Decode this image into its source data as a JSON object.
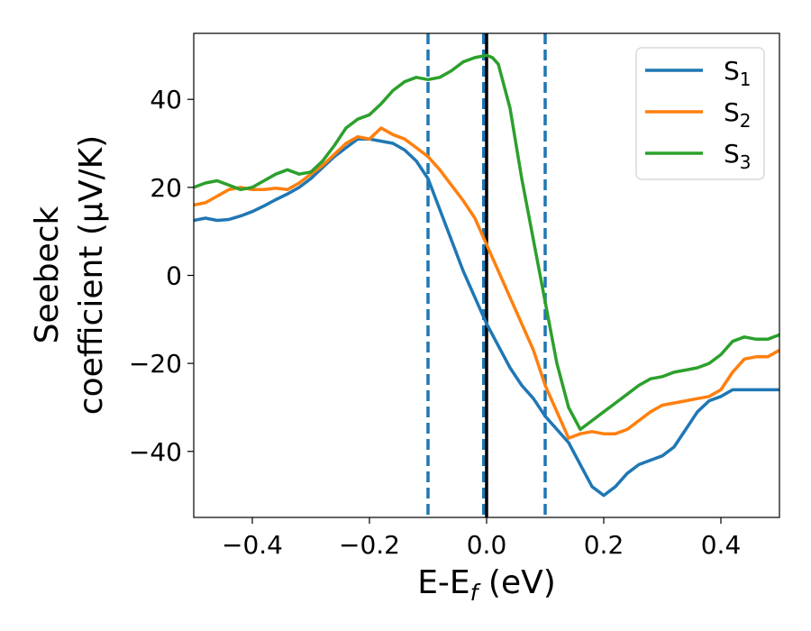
{
  "chart_data": {
    "type": "line",
    "title": "",
    "xlabel": {
      "main": "E-E",
      "sub": "f",
      "suffix": " (eV)"
    },
    "ylabel": {
      "line1": "Seebeck",
      "line2": "coefficient  (μV/K)"
    },
    "xlim": [
      -0.5,
      0.5
    ],
    "ylim": [
      -55,
      55
    ],
    "xticks": [
      -0.4,
      -0.2,
      0.0,
      0.2,
      0.4
    ],
    "xtick_labels": [
      "−0.4",
      "−0.2",
      "0.0",
      "0.2",
      "0.4"
    ],
    "yticks": [
      -40,
      -20,
      0,
      20,
      40
    ],
    "ytick_labels": [
      "−40",
      "−20",
      "0",
      "20",
      "40"
    ],
    "grid": false,
    "legend": {
      "position": "top-right"
    },
    "series": [
      {
        "name": "S",
        "sub": "1",
        "color": "#1f77b4",
        "x": [
          -0.5,
          -0.48,
          -0.46,
          -0.44,
          -0.42,
          -0.4,
          -0.38,
          -0.36,
          -0.34,
          -0.32,
          -0.3,
          -0.28,
          -0.26,
          -0.24,
          -0.22,
          -0.2,
          -0.18,
          -0.16,
          -0.14,
          -0.12,
          -0.1,
          -0.08,
          -0.06,
          -0.04,
          -0.02,
          0.0,
          0.02,
          0.04,
          0.06,
          0.08,
          0.1,
          0.12,
          0.14,
          0.16,
          0.18,
          0.2,
          0.22,
          0.24,
          0.26,
          0.28,
          0.3,
          0.32,
          0.34,
          0.36,
          0.38,
          0.4,
          0.42,
          0.44,
          0.46,
          0.48,
          0.5
        ],
        "y": [
          12.5,
          13,
          12.5,
          12.7,
          13.5,
          14.5,
          15.8,
          17.2,
          18.5,
          20,
          22,
          24.5,
          27,
          29,
          31,
          31,
          30.5,
          30,
          28.5,
          26,
          22,
          15,
          8,
          1,
          -5,
          -11,
          -16,
          -21,
          -25,
          -28,
          -32,
          -35,
          -38,
          -43,
          -48,
          -50,
          -48,
          -45,
          -43,
          -42,
          -41,
          -39,
          -35,
          -31,
          -28.5,
          -27.5,
          -26,
          -26,
          -26,
          -26,
          -26
        ]
      },
      {
        "name": "S",
        "sub": "2",
        "color": "#ff7f0e",
        "x": [
          -0.5,
          -0.48,
          -0.46,
          -0.44,
          -0.42,
          -0.4,
          -0.38,
          -0.36,
          -0.34,
          -0.32,
          -0.3,
          -0.28,
          -0.26,
          -0.24,
          -0.22,
          -0.2,
          -0.18,
          -0.16,
          -0.14,
          -0.12,
          -0.1,
          -0.08,
          -0.06,
          -0.04,
          -0.02,
          0.0,
          0.02,
          0.04,
          0.06,
          0.08,
          0.1,
          0.12,
          0.14,
          0.16,
          0.18,
          0.2,
          0.22,
          0.24,
          0.26,
          0.28,
          0.3,
          0.32,
          0.34,
          0.36,
          0.38,
          0.4,
          0.42,
          0.44,
          0.46,
          0.48,
          0.5
        ],
        "y": [
          16,
          16.5,
          18,
          19.5,
          20,
          19.5,
          19.5,
          19.8,
          19.5,
          21,
          23,
          25,
          27.5,
          30,
          31.5,
          31,
          33.5,
          32,
          31,
          29,
          27,
          24,
          20.5,
          17,
          13,
          7,
          1,
          -5,
          -11,
          -17,
          -25,
          -31,
          -37,
          -36,
          -35.5,
          -36,
          -36,
          -35,
          -33,
          -31,
          -29.5,
          -29,
          -28.5,
          -28,
          -27.5,
          -26,
          -22,
          -19,
          -18.5,
          -18.5,
          -17
        ]
      },
      {
        "name": "S",
        "sub": "3",
        "color": "#2ca02c",
        "x": [
          -0.5,
          -0.48,
          -0.46,
          -0.44,
          -0.42,
          -0.4,
          -0.38,
          -0.36,
          -0.34,
          -0.32,
          -0.3,
          -0.28,
          -0.26,
          -0.24,
          -0.22,
          -0.2,
          -0.18,
          -0.16,
          -0.14,
          -0.12,
          -0.1,
          -0.08,
          -0.06,
          -0.04,
          -0.02,
          0.0,
          0.01,
          0.02,
          0.04,
          0.06,
          0.08,
          0.1,
          0.12,
          0.14,
          0.16,
          0.18,
          0.2,
          0.22,
          0.24,
          0.26,
          0.28,
          0.3,
          0.32,
          0.34,
          0.36,
          0.38,
          0.4,
          0.42,
          0.44,
          0.46,
          0.48,
          0.5
        ],
        "y": [
          20,
          21,
          21.5,
          20.5,
          19.5,
          20,
          21.5,
          23,
          24,
          23,
          23.5,
          26,
          29.5,
          33.5,
          35.5,
          36.5,
          39,
          42,
          44,
          45,
          44.5,
          45,
          46.5,
          48.5,
          49.5,
          50,
          49.5,
          48,
          38,
          22,
          8,
          -6,
          -20,
          -30,
          -35,
          -33,
          -31,
          -29,
          -27,
          -25,
          -23.5,
          -23,
          -22,
          -21.5,
          -21,
          -20,
          -18,
          -15,
          -14,
          -14.5,
          -14.5,
          -13.5
        ]
      }
    ],
    "vlines": [
      {
        "x": -0.1,
        "style": "dashed",
        "color": "#1f77b4"
      },
      {
        "x": -0.005,
        "style": "dashed",
        "color": "#1f77b4"
      },
      {
        "x": 0.1,
        "style": "dashed",
        "color": "#1f77b4"
      },
      {
        "x": 0.0,
        "style": "solid",
        "color": "#000000"
      }
    ]
  }
}
